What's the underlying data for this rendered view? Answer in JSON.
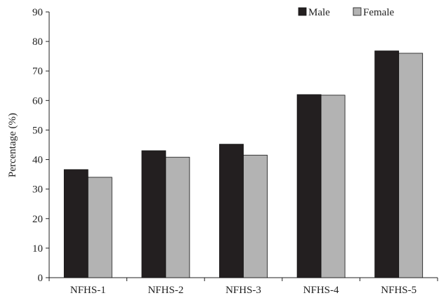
{
  "chart_data": {
    "type": "bar",
    "categories": [
      "NFHS-1",
      "NFHS-2",
      "NFHS-3",
      "NFHS-4",
      "NFHS-5"
    ],
    "series": [
      {
        "name": "Male",
        "values": [
          36.6,
          43.0,
          45.2,
          62.0,
          76.8
        ],
        "color": "#231f20"
      },
      {
        "name": "Female",
        "values": [
          34.0,
          40.8,
          41.5,
          61.8,
          76.0
        ],
        "color": "#b3b3b3"
      }
    ],
    "ylabel": "Percentage (%)",
    "xlabel": "",
    "ylim": [
      0,
      90
    ],
    "yticks": [
      0,
      10,
      20,
      30,
      40,
      50,
      60,
      70,
      80,
      90
    ],
    "grid": false,
    "legend_position": "top-right"
  }
}
